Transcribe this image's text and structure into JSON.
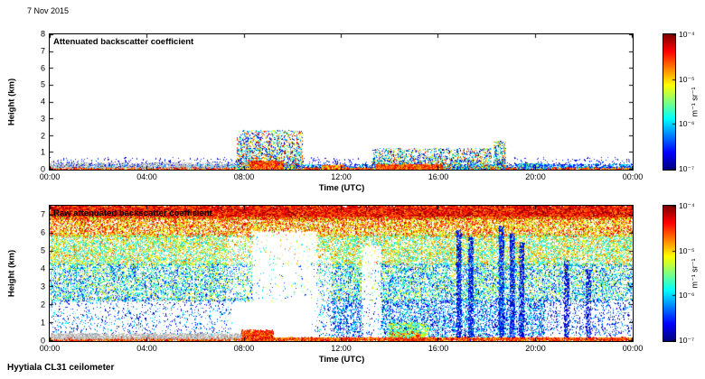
{
  "date_label": "7 Nov 2015",
  "footer_label": "Hyytiala CL31 ceilometer",
  "chart_data": [
    {
      "type": "heatmap",
      "title": "Attenuated backscatter coefficient",
      "xlabel": "Time (UTC)",
      "ylabel": "Height (km)",
      "x_ticks": [
        "00:00",
        "04:00",
        "08:00",
        "12:00",
        "16:00",
        "20:00",
        "00:00"
      ],
      "y_ticks": [
        0,
        1,
        2,
        3,
        4,
        5,
        6,
        7,
        8
      ],
      "ylim": [
        0,
        8
      ],
      "xlim_hours": [
        0,
        24
      ],
      "colormap": "jet",
      "value_scale": "log10",
      "value_min": "1e-7",
      "value_max": "1e-4",
      "colorbar_ticks": [
        "10⁻⁴",
        "10⁻⁵",
        "10⁻⁶",
        "10⁻⁷"
      ],
      "colorbar_label": "m⁻¹ sr⁻¹",
      "grid": false,
      "legend": "colorbar-right",
      "description": "Mostly clear day: strong echoes confined below ~0.5 km all day (red near surface, blue/cyan speckle above), plume of mixed echoes to ~2.3 km around 08:00-10:30, shallow plumes to ~1.3 km between 13:30-18:15, narrow column to ~1.7 km near 18:30.",
      "seed": 7,
      "render_regions": [
        {
          "t": [
            0,
            24
          ],
          "h": [
            0,
            0.12
          ],
          "count": 5000,
          "exp": [
            -5.0,
            -4.1
          ]
        },
        {
          "t": [
            0,
            24
          ],
          "h": [
            0.08,
            0.3
          ],
          "count": 2200,
          "exp": [
            -6.9,
            -5.8
          ]
        },
        {
          "t": [
            0,
            8.2
          ],
          "h": [
            0.05,
            0.4
          ],
          "count": 1100,
          "palette": "gray"
        },
        {
          "t": [
            0,
            24
          ],
          "h": [
            0.25,
            0.7
          ],
          "count": 500,
          "exp": [
            -7,
            -6.4
          ]
        },
        {
          "t": [
            7.7,
            10.4
          ],
          "h": [
            0,
            2.3
          ],
          "count": 2600,
          "exp": [
            -7,
            -4.3
          ],
          "shape": "plume"
        },
        {
          "t": [
            8.2,
            9.6
          ],
          "h": [
            0,
            0.5
          ],
          "count": 700,
          "exp": [
            -5.0,
            -4.2
          ]
        },
        {
          "t": [
            13.3,
            18.2
          ],
          "h": [
            0,
            1.25
          ],
          "count": 2400,
          "exp": [
            -7,
            -4.4
          ],
          "shape": "plume"
        },
        {
          "t": [
            13.4,
            16.2
          ],
          "h": [
            0,
            0.28
          ],
          "count": 1400,
          "exp": [
            -5.0,
            -4.2
          ]
        },
        {
          "t": [
            18.3,
            18.8
          ],
          "h": [
            0,
            1.7
          ],
          "count": 500,
          "exp": [
            -7,
            -4.6
          ],
          "shape": "plume"
        },
        {
          "t": [
            11.2,
            12.1
          ],
          "h": [
            0,
            0.25
          ],
          "count": 300,
          "exp": [
            -5.2,
            -4.3
          ]
        },
        {
          "t": [
            19.2,
            20.6
          ],
          "h": [
            0,
            0.35
          ],
          "count": 350,
          "exp": [
            -6.8,
            -5.2
          ]
        }
      ],
      "masks": []
    },
    {
      "type": "heatmap",
      "title": "Raw attenuated backscatter coefficient",
      "xlabel": "Time (UTC)",
      "ylabel": "Height (km)",
      "x_ticks": [
        "00:00",
        "04:00",
        "08:00",
        "12:00",
        "16:00",
        "20:00",
        "00:00"
      ],
      "y_ticks": [
        0,
        1,
        2,
        3,
        4,
        5,
        6,
        7
      ],
      "ylim": [
        0,
        7.5
      ],
      "xlim_hours": [
        0,
        24
      ],
      "colormap": "jet",
      "value_scale": "log10",
      "value_min": "1e-7",
      "value_max": "1e-4",
      "colorbar_ticks": [
        "10⁻⁴",
        "10⁻⁵",
        "10⁻⁶",
        "10⁻⁷"
      ],
      "colorbar_label": "m⁻¹ sr⁻¹",
      "grid": false,
      "legend": "colorbar-right",
      "description": "Raw signal dominated by noise: near-solid red/dark-red band above ~6.8 km, orange/yellow 5.8-6.9 km, green/cyan rainbow speckle 2.2-6 km; white low-noise gaps ~08:20-11:00 (to ~6 km) and ~13:00 (to ~5 km); blue vertical streaks near 17:00, 17:25, 18:30-19:30, 21:20, 22:10; thin red surface band all day with gray band before 08:00; strong red patches near the surface ~08:00-09:00 and ~14:00-15:30.",
      "seed": 42,
      "render_regions": [
        {
          "t": [
            0,
            24
          ],
          "h": [
            6.8,
            7.5
          ],
          "count": 22000,
          "exp": [
            -4.8,
            -4.0
          ],
          "dot": 2,
          "nomask": true
        },
        {
          "t": [
            0,
            24
          ],
          "h": [
            5.8,
            6.9
          ],
          "count": 14000,
          "exp": [
            -5.5,
            -4.2
          ]
        },
        {
          "t": [
            0,
            24
          ],
          "h": [
            4.2,
            5.9
          ],
          "count": 16000,
          "exp": [
            -6.1,
            -4.6
          ]
        },
        {
          "t": [
            0,
            24
          ],
          "h": [
            2.2,
            4.3
          ],
          "count": 16000,
          "exp": [
            -6.7,
            -5.0
          ]
        },
        {
          "t": [
            0,
            7.5
          ],
          "h": [
            0.35,
            2.3
          ],
          "count": 900,
          "exp": [
            -7,
            -5.8
          ]
        },
        {
          "t": [
            10.8,
            20.4
          ],
          "h": [
            0.2,
            2.3
          ],
          "count": 5200,
          "exp": [
            -7,
            -5.6
          ]
        },
        {
          "t": [
            20.4,
            24
          ],
          "h": [
            0.3,
            2.3
          ],
          "count": 700,
          "exp": [
            -7,
            -6.0
          ]
        },
        {
          "t": [
            16.75,
            16.95
          ],
          "h": [
            0,
            6.2
          ],
          "count": 800,
          "exp": [
            -7,
            -6.2
          ],
          "nomask": true
        },
        {
          "t": [
            17.25,
            17.45
          ],
          "h": [
            0,
            5.8
          ],
          "count": 700,
          "exp": [
            -7,
            -6.2
          ],
          "nomask": true
        },
        {
          "t": [
            18.5,
            18.72
          ],
          "h": [
            0,
            6.4
          ],
          "count": 900,
          "exp": [
            -7,
            -6.1
          ],
          "nomask": true
        },
        {
          "t": [
            18.95,
            19.15
          ],
          "h": [
            0,
            6.0
          ],
          "count": 700,
          "exp": [
            -7,
            -6.2
          ],
          "nomask": true
        },
        {
          "t": [
            19.35,
            19.55
          ],
          "h": [
            0,
            5.5
          ],
          "count": 600,
          "exp": [
            -7,
            -6.3
          ],
          "nomask": true
        },
        {
          "t": [
            21.2,
            21.4
          ],
          "h": [
            0,
            4.5
          ],
          "count": 350,
          "exp": [
            -7,
            -6.4
          ],
          "nomask": true
        },
        {
          "t": [
            22.1,
            22.3
          ],
          "h": [
            0,
            4.0
          ],
          "count": 300,
          "exp": [
            -7,
            -6.4
          ],
          "nomask": true
        },
        {
          "t": [
            0,
            24
          ],
          "h": [
            0,
            0.18
          ],
          "count": 6500,
          "exp": [
            -5.0,
            -4.1
          ],
          "nomask": true
        },
        {
          "t": [
            0,
            8.3
          ],
          "h": [
            0.1,
            0.4
          ],
          "count": 2200,
          "palette": "gray",
          "nomask": true
        },
        {
          "t": [
            7.9,
            9.2
          ],
          "h": [
            0,
            0.6
          ],
          "count": 1500,
          "exp": [
            -4.9,
            -4.1
          ],
          "shape": "plume",
          "nomask": true
        },
        {
          "t": [
            14.0,
            15.4
          ],
          "h": [
            0,
            0.5
          ],
          "count": 1300,
          "exp": [
            -4.9,
            -4.1
          ],
          "shape": "plume",
          "nomask": true
        },
        {
          "t": [
            13.9,
            15.6
          ],
          "h": [
            0.2,
            1.0
          ],
          "count": 600,
          "exp": [
            -6.0,
            -5.0
          ],
          "nomask": true
        }
      ],
      "masks": [
        {
          "t": [
            8.35,
            11.0
          ],
          "h": [
            0,
            6.1
          ],
          "keep": 0.05
        },
        {
          "t": [
            12.85,
            13.65
          ],
          "h": [
            0,
            5.3
          ],
          "keep": 0.12
        },
        {
          "t": [
            7.3,
            8.35
          ],
          "h": [
            2.4,
            6.0
          ],
          "keep": 0.45
        },
        {
          "t": [
            11.0,
            11.6
          ],
          "h": [
            0,
            5.0
          ],
          "keep": 0.35
        }
      ]
    }
  ]
}
